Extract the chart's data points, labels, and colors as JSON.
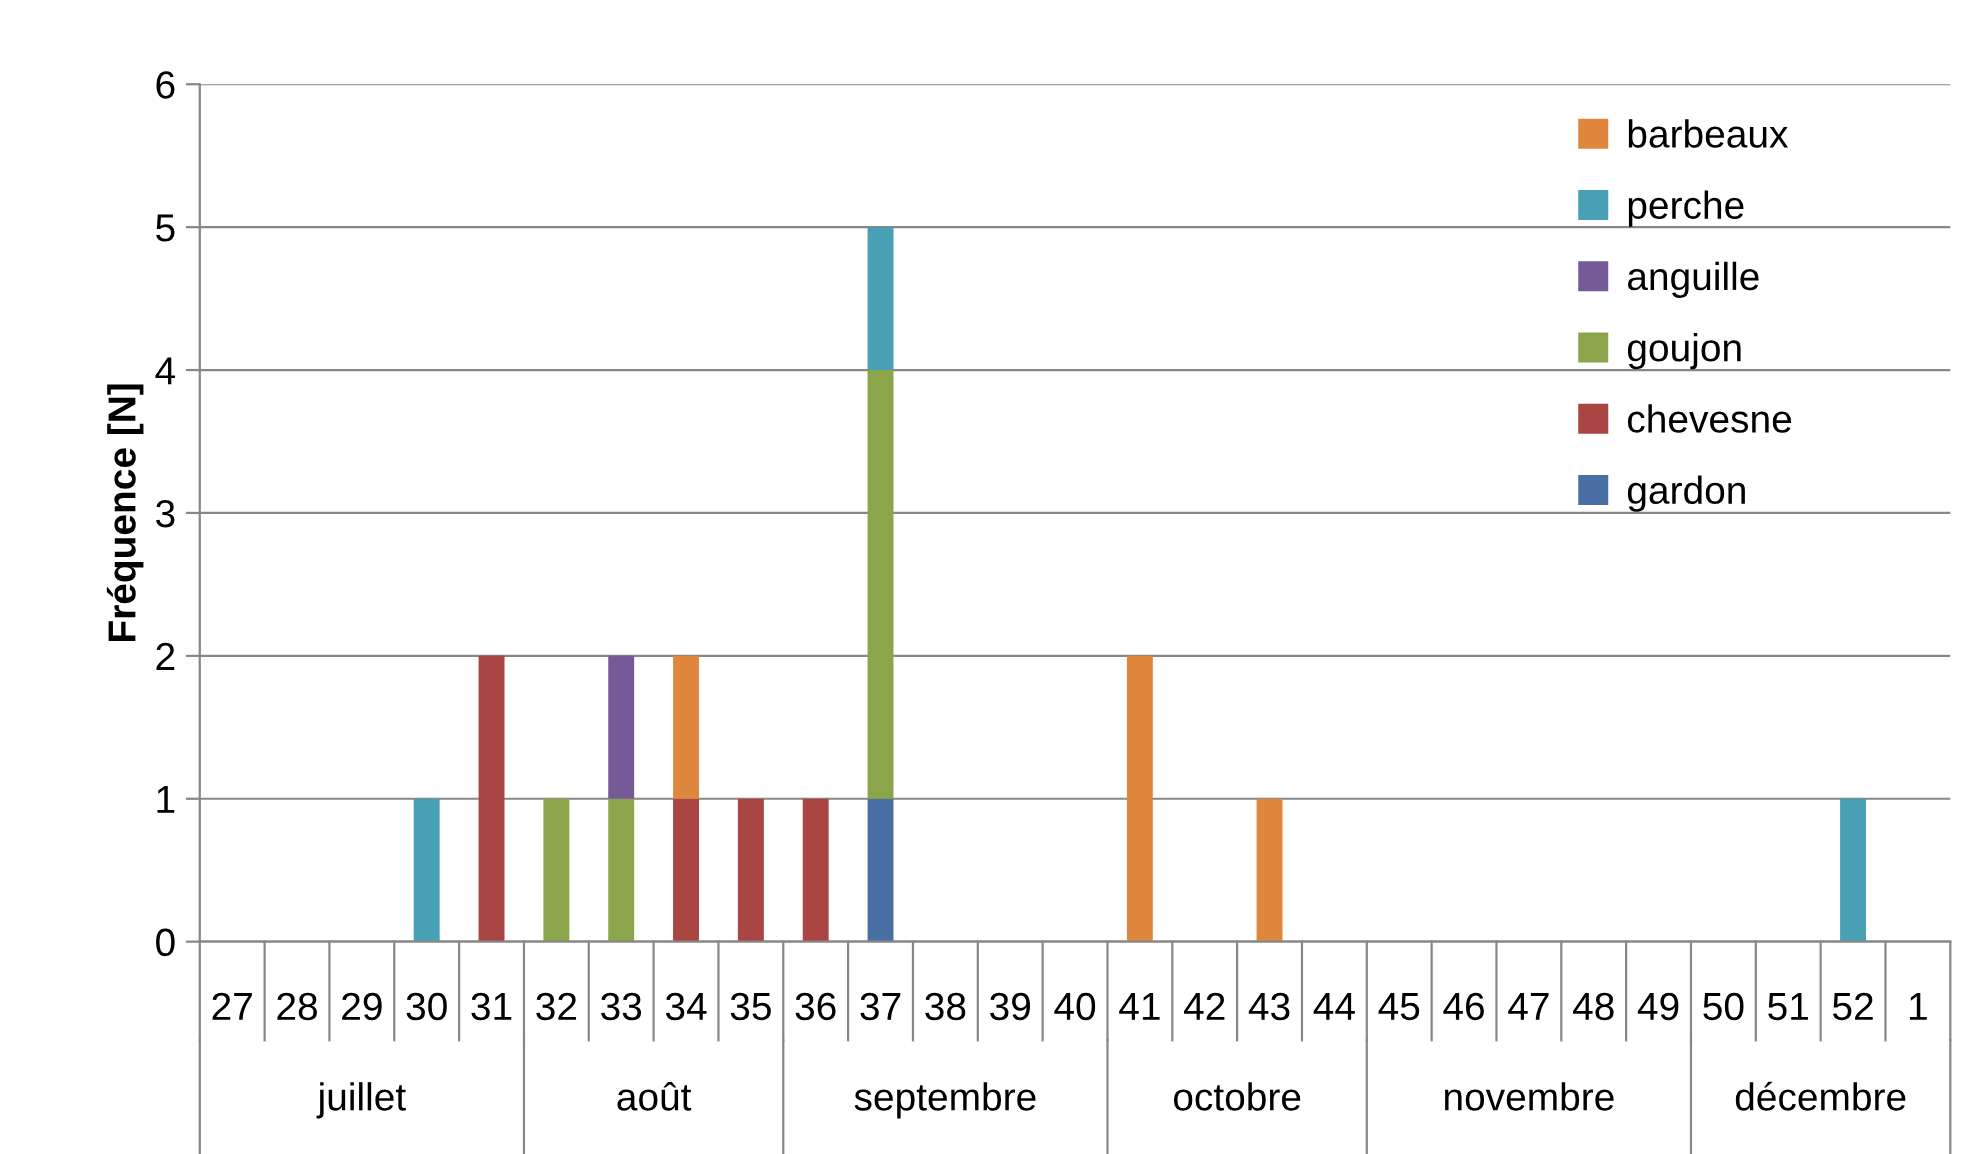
{
  "chart_data": {
    "type": "bar",
    "stacked": true,
    "ylabel": "Fréquence [N]",
    "categories": [
      "27",
      "28",
      "29",
      "30",
      "31",
      "32",
      "33",
      "34",
      "35",
      "36",
      "37",
      "38",
      "39",
      "40",
      "41",
      "42",
      "43",
      "44",
      "45",
      "46",
      "47",
      "48",
      "49",
      "50",
      "51",
      "52",
      "1"
    ],
    "series": [
      {
        "name": "gardon",
        "color": "#4a6fa5",
        "values": [
          0,
          0,
          0,
          0,
          0,
          0,
          0,
          0,
          0,
          0,
          1,
          0,
          0,
          0,
          0,
          0,
          0,
          0,
          0,
          0,
          0,
          0,
          0,
          0,
          0,
          0,
          0
        ]
      },
      {
        "name": "chevesne",
        "color": "#a94643",
        "values": [
          0,
          0,
          0,
          0,
          2,
          0,
          0,
          1,
          1,
          1,
          0,
          0,
          0,
          0,
          0,
          0,
          0,
          0,
          0,
          0,
          0,
          0,
          0,
          0,
          0,
          0,
          0
        ]
      },
      {
        "name": "goujon",
        "color": "#8aa54a",
        "values": [
          0,
          0,
          0,
          0,
          0,
          1,
          1,
          0,
          0,
          0,
          3,
          0,
          0,
          0,
          0,
          0,
          0,
          0,
          0,
          0,
          0,
          0,
          0,
          0,
          0,
          0,
          0
        ]
      },
      {
        "name": "anguille",
        "color": "#755a98",
        "values": [
          0,
          0,
          0,
          0,
          0,
          0,
          1,
          0,
          0,
          0,
          0,
          0,
          0,
          0,
          0,
          0,
          0,
          0,
          0,
          0,
          0,
          0,
          0,
          0,
          0,
          0,
          0
        ]
      },
      {
        "name": "perche",
        "color": "#48a0b5",
        "values": [
          0,
          0,
          0,
          1,
          0,
          0,
          0,
          0,
          0,
          0,
          1,
          0,
          0,
          0,
          0,
          0,
          0,
          0,
          0,
          0,
          0,
          0,
          0,
          0,
          0,
          1,
          0
        ]
      },
      {
        "name": "barbeaux",
        "color": "#e0873e",
        "values": [
          0,
          0,
          0,
          0,
          0,
          0,
          0,
          1,
          0,
          0,
          0,
          0,
          0,
          0,
          2,
          0,
          1,
          0,
          0,
          0,
          0,
          0,
          0,
          0,
          0,
          0,
          0
        ]
      }
    ],
    "annotations": [
      "juillet",
      "août",
      "septembre",
      "octobre",
      "novembre",
      "décembre"
    ],
    "ylim": [
      0,
      6
    ],
    "yticks": [
      0,
      1,
      2,
      3,
      4,
      5,
      6
    ],
    "grid": "y",
    "legend": "top right"
  }
}
